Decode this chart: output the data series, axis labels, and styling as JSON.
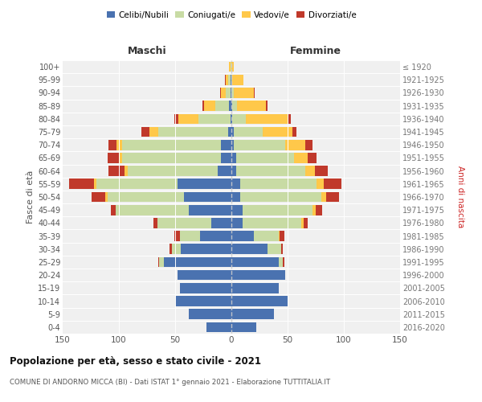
{
  "age_groups": [
    "0-4",
    "5-9",
    "10-14",
    "15-19",
    "20-24",
    "25-29",
    "30-34",
    "35-39",
    "40-44",
    "45-49",
    "50-54",
    "55-59",
    "60-64",
    "65-69",
    "70-74",
    "75-79",
    "80-84",
    "85-89",
    "90-94",
    "95-99",
    "100+"
  ],
  "birth_years": [
    "2016-2020",
    "2011-2015",
    "2006-2010",
    "2001-2005",
    "1996-2000",
    "1991-1995",
    "1986-1990",
    "1981-1985",
    "1976-1980",
    "1971-1975",
    "1966-1970",
    "1961-1965",
    "1956-1960",
    "1951-1955",
    "1946-1950",
    "1941-1945",
    "1936-1940",
    "1931-1935",
    "1926-1930",
    "1921-1925",
    "≤ 1920"
  ],
  "males": {
    "celibi": [
      22,
      38,
      50,
      46,
      48,
      60,
      45,
      28,
      18,
      38,
      42,
      48,
      12,
      9,
      9,
      3,
      1,
      2,
      1,
      1,
      0
    ],
    "coniugati": [
      0,
      0,
      0,
      0,
      0,
      4,
      8,
      18,
      48,
      65,
      68,
      72,
      80,
      88,
      88,
      62,
      28,
      12,
      4,
      2,
      1
    ],
    "vedovi": [
      0,
      0,
      0,
      0,
      0,
      0,
      0,
      0,
      0,
      0,
      2,
      2,
      3,
      3,
      5,
      8,
      18,
      10,
      4,
      2,
      1
    ],
    "divorziati": [
      0,
      0,
      0,
      0,
      0,
      1,
      2,
      5,
      3,
      4,
      12,
      22,
      14,
      10,
      7,
      7,
      4,
      2,
      1,
      1,
      0
    ]
  },
  "females": {
    "nubili": [
      22,
      38,
      50,
      42,
      48,
      42,
      32,
      20,
      10,
      10,
      8,
      8,
      4,
      4,
      2,
      2,
      1,
      1,
      0,
      0,
      0
    ],
    "coniugate": [
      0,
      0,
      0,
      0,
      0,
      4,
      12,
      22,
      52,
      62,
      72,
      68,
      62,
      52,
      46,
      26,
      12,
      4,
      2,
      1,
      0
    ],
    "vedove": [
      0,
      0,
      0,
      0,
      0,
      0,
      0,
      1,
      2,
      3,
      4,
      6,
      8,
      12,
      18,
      26,
      38,
      26,
      18,
      10,
      2
    ],
    "divorziate": [
      0,
      0,
      0,
      0,
      0,
      1,
      2,
      4,
      4,
      6,
      12,
      16,
      12,
      8,
      6,
      4,
      2,
      1,
      1,
      0,
      0
    ]
  },
  "colors": {
    "celibi_nubili": "#4a72b0",
    "coniugati": "#c8dba4",
    "vedovi": "#ffc84a",
    "divorziati": "#c0392b"
  },
  "title": "Popolazione per età, sesso e stato civile - 2021",
  "subtitle": "COMUNE DI ANDORNO MICCA (BI) - Dati ISTAT 1° gennaio 2021 - Elaborazione TUTTITALIA.IT",
  "xlabel_left": "Maschi",
  "xlabel_right": "Femmine",
  "ylabel_left": "Fasce di età",
  "ylabel_right": "Anni di nascita",
  "xlim": 150,
  "background_color": "#f0f0f0"
}
